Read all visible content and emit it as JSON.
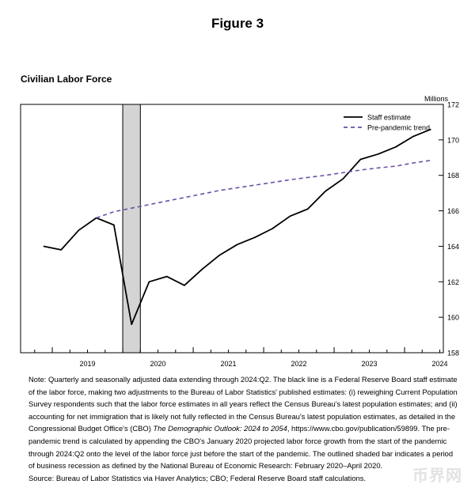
{
  "figure_label": "Figure 3",
  "watermark": "币界网",
  "chart_data": {
    "type": "line",
    "title": "Civilian Labor Force",
    "ylabel": "Millions",
    "ylim": [
      158,
      172
    ],
    "yticks": [
      158,
      160,
      162,
      164,
      166,
      168,
      170,
      172
    ],
    "xlim": [
      2018.55,
      2024.55
    ],
    "xticks": [
      2019,
      2020,
      2021,
      2022,
      2023,
      2024
    ],
    "grid": false,
    "legend_position": "top-right",
    "recession": {
      "start": 2020.0,
      "end": 2020.25
    },
    "series": [
      {
        "name": "Staff estimate",
        "style": "solid",
        "color": "#000000",
        "x": [
          2018.875,
          2019.125,
          2019.375,
          2019.625,
          2019.875,
          2020.125,
          2020.375,
          2020.625,
          2020.875,
          2021.125,
          2021.375,
          2021.625,
          2021.875,
          2022.125,
          2022.375,
          2022.625,
          2022.875,
          2023.125,
          2023.375,
          2023.625,
          2023.875,
          2024.125,
          2024.375
        ],
        "values": [
          164.0,
          163.8,
          164.9,
          165.6,
          165.2,
          159.6,
          162.0,
          162.3,
          161.8,
          162.7,
          163.5,
          164.1,
          164.5,
          165.0,
          165.7,
          166.1,
          167.1,
          167.8,
          168.9,
          169.2,
          169.6,
          170.2,
          170.6
        ]
      },
      {
        "name": "Pre-pandemic trend",
        "style": "dashed",
        "color": "#6a4fa8",
        "x": [
          2019.625,
          2019.875,
          2020.125,
          2020.375,
          2020.625,
          2020.875,
          2021.125,
          2021.375,
          2021.625,
          2021.875,
          2022.125,
          2022.375,
          2022.625,
          2022.875,
          2023.125,
          2023.375,
          2023.625,
          2023.875,
          2024.125,
          2024.375
        ],
        "values": [
          165.6,
          165.95,
          166.15,
          166.35,
          166.55,
          166.75,
          166.95,
          167.15,
          167.3,
          167.45,
          167.6,
          167.75,
          167.88,
          168.0,
          168.15,
          168.3,
          168.42,
          168.52,
          168.7,
          168.85
        ]
      }
    ]
  },
  "notes": {
    "note_p1": "Note:  Quarterly and seasonally adjusted data extending through 2024:Q2.  The black line is a Federal Reserve Board staff estimate of the labor force, making two adjustments to the Bureau of Labor Statistics' published estimates: (i) reweighing Current Population Survey respondents such that the labor force estimates in all years reflect the Census Bureau's latest population estimates; and (ii) accounting for net immigration that is likely not fully reflected in the Census Bureau's latest population estimates, as detailed in the Congressional Budget Office's (CBO) ",
    "note_pub": "The Demographic Outlook: 2024 to 2054",
    "note_p2": ", https://www.cbo.gov/publication/59899. The pre-pandemic trend is calculated by appending the CBO's January 2020 projected labor force growth from the start of the pandemic through 2024:Q2 onto the level of the labor force just before the start of the pandemic. The outlined shaded bar indicates a period of business recession as defined by the National Bureau of Economic Research: February 2020–April 2020.",
    "source": "Source: Bureau of Labor Statistics via Haver Analytics; CBO; Federal Reserve Board staff calculations."
  }
}
